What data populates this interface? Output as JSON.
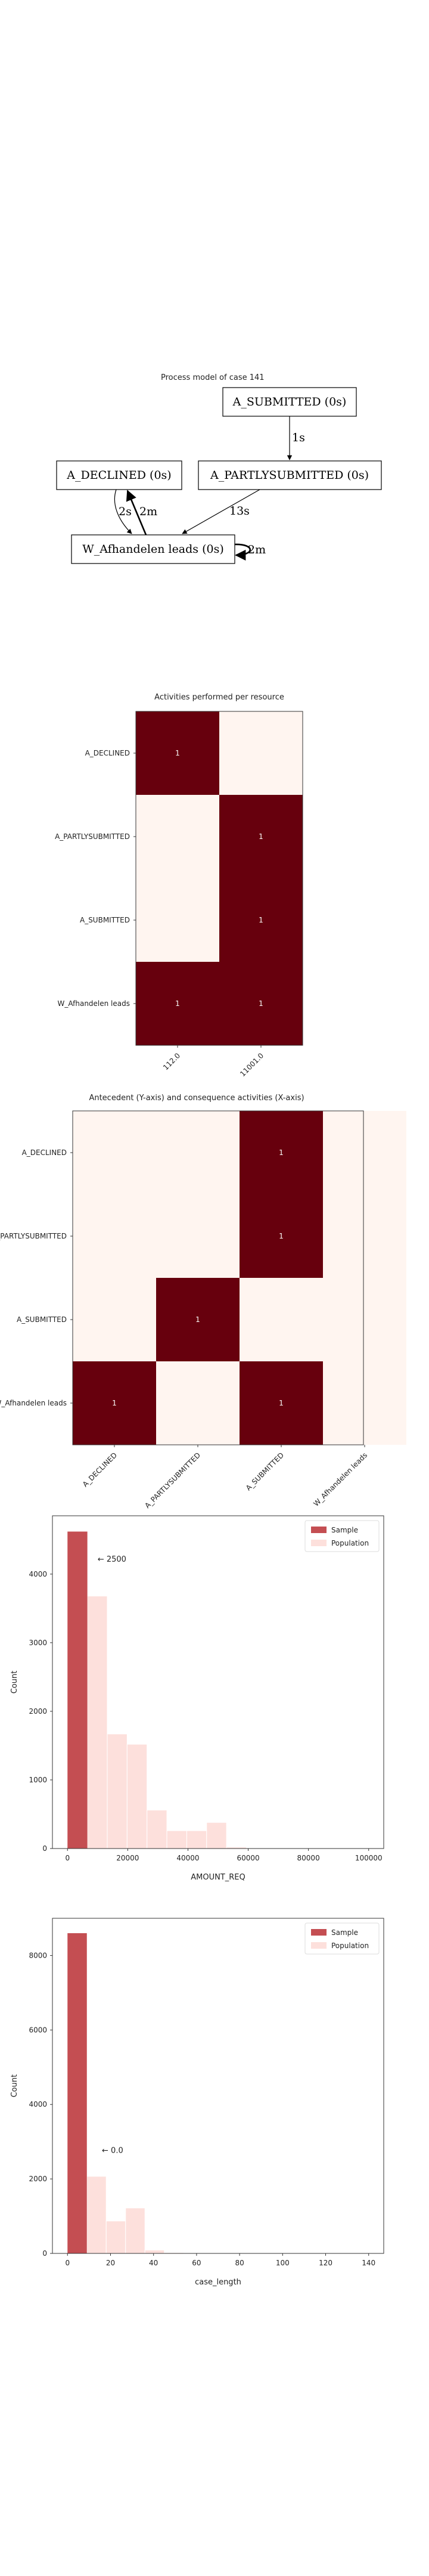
{
  "process_model": {
    "title": "Process model of case 141",
    "nodes": [
      {
        "id": "sub",
        "label": "A_SUBMITTED (0s)"
      },
      {
        "id": "dec",
        "label": "A_DECLINED (0s)"
      },
      {
        "id": "part",
        "label": "A_PARTLYSUBMITTED (0s)"
      },
      {
        "id": "wa",
        "label": "W_Afhandelen leads (0s)"
      }
    ],
    "edges": [
      {
        "from": "sub",
        "to": "part",
        "label": "1s"
      },
      {
        "from": "part",
        "to": "wa",
        "label": "13s"
      },
      {
        "from": "dec",
        "to": "wa",
        "label": "2s"
      },
      {
        "from": "wa",
        "to": "dec",
        "label": "2m"
      },
      {
        "from": "wa",
        "to": "wa",
        "label": "2m"
      }
    ]
  },
  "chart_data": [
    {
      "type": "heatmap",
      "title": "Activities performed per resource",
      "x_labels": [
        "112.0",
        "11001.0"
      ],
      "y_labels": [
        "A_DECLINED",
        "A_PARTLYSUBMITTED",
        "A_SUBMITTED",
        "W_Afhandelen leads"
      ],
      "values": [
        [
          1,
          null
        ],
        [
          null,
          1
        ],
        [
          null,
          1
        ],
        [
          1,
          1
        ]
      ],
      "colors": {
        "high": "#67000d",
        "low": "#fff5f0",
        "text": "#ffffff"
      }
    },
    {
      "type": "heatmap",
      "title": "Antecedent (Y-axis) and consequence activities (X-axis)",
      "x_labels": [
        "A_DECLINED",
        "A_PARTLYSUBMITTED",
        "A_SUBMITTED",
        "W_Afhandelen leads"
      ],
      "y_labels": [
        "A_DECLINED",
        "A_PARTLYSUBMITTED",
        "A_SUBMITTED",
        "W_Afhandelen leads"
      ],
      "values": [
        [
          null,
          null,
          1,
          null
        ],
        [
          null,
          null,
          1,
          null
        ],
        [
          null,
          1,
          null,
          null
        ],
        [
          1,
          null,
          1,
          null
        ]
      ],
      "colors": {
        "high": "#67000d",
        "low": "#fff5f0",
        "text": "#ffffff"
      }
    },
    {
      "type": "bar",
      "xlabel": "AMOUNT_REQ",
      "ylabel": "Count",
      "xlim": [
        -5000,
        105000
      ],
      "ylim": [
        0,
        4850
      ],
      "xticks": [
        "0",
        "20000",
        "40000",
        "60000",
        "80000",
        "100000"
      ],
      "yticks": [
        "0",
        "1000",
        "2000",
        "3000",
        "4000"
      ],
      "annotation": {
        "text": "← 2500",
        "x": 10000,
        "y": 4180
      },
      "legend": {
        "position": "top-right",
        "entries": [
          "Sample",
          "Population"
        ]
      },
      "series": [
        {
          "name": "Sample",
          "color": "#c44e52",
          "bins": [
            {
              "x0": 0,
              "x1": 6600,
              "value": 4620
            }
          ]
        },
        {
          "name": "Population",
          "color": "#fde0dc",
          "bins": [
            {
              "x0": 0,
              "x1": 6600,
              "value": 4620
            },
            {
              "x0": 6600,
              "x1": 13200,
              "value": 3680
            },
            {
              "x0": 13200,
              "x1": 19800,
              "value": 1670
            },
            {
              "x0": 19800,
              "x1": 26400,
              "value": 1520
            },
            {
              "x0": 26400,
              "x1": 33000,
              "value": 560
            },
            {
              "x0": 33000,
              "x1": 39600,
              "value": 260
            },
            {
              "x0": 39600,
              "x1": 46200,
              "value": 260
            },
            {
              "x0": 46200,
              "x1": 52800,
              "value": 380
            },
            {
              "x0": 52800,
              "x1": 59400,
              "value": 20
            }
          ]
        }
      ]
    },
    {
      "type": "bar",
      "xlabel": "case_length",
      "ylabel": "Count",
      "xlim": [
        -7,
        147
      ],
      "ylim": [
        0,
        9000
      ],
      "xticks": [
        "0",
        "20",
        "40",
        "60",
        "80",
        "100",
        "120",
        "140"
      ],
      "yticks": [
        "0",
        "2000",
        "4000",
        "6000",
        "8000"
      ],
      "annotation": {
        "text": "← 0.0",
        "x": 16,
        "y": 2700
      },
      "legend": {
        "position": "top-right",
        "entries": [
          "Sample",
          "Population"
        ]
      },
      "series": [
        {
          "name": "Sample",
          "color": "#c44e52",
          "bins": [
            {
              "x0": 0,
              "x1": 9,
              "value": 8600
            }
          ]
        },
        {
          "name": "Population",
          "color": "#fde0dc",
          "bins": [
            {
              "x0": 0,
              "x1": 9,
              "value": 8600
            },
            {
              "x0": 9,
              "x1": 18,
              "value": 2070
            },
            {
              "x0": 18,
              "x1": 27,
              "value": 870
            },
            {
              "x0": 27,
              "x1": 36,
              "value": 1220
            },
            {
              "x0": 36,
              "x1": 45,
              "value": 90
            },
            {
              "x0": 45,
              "x1": 54,
              "value": 20
            },
            {
              "x0": 54,
              "x1": 63,
              "value": 10
            }
          ]
        }
      ]
    }
  ]
}
